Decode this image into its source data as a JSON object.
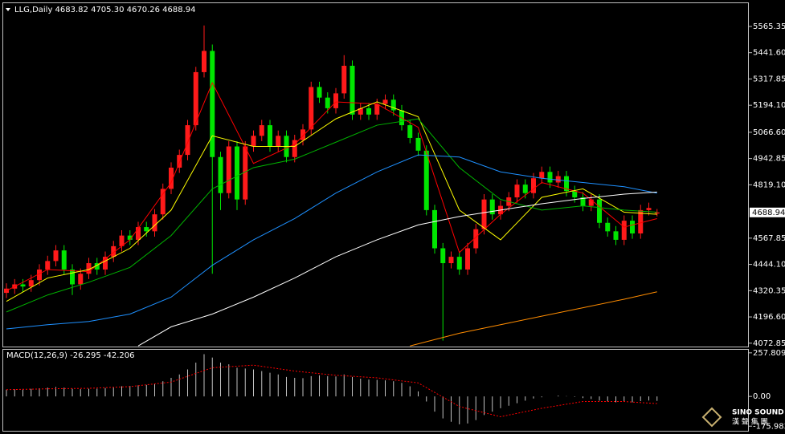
{
  "chart_data": [
    {
      "type": "candlestick",
      "title": "LLG,Daily  4683.82 4705.30 4670.26 4688.94",
      "up_color": "#ff1a1a",
      "down_color": "#00e600",
      "open": [
        4310,
        4330,
        4350,
        4340,
        4370,
        4420,
        4460,
        4510,
        4420,
        4350,
        4400,
        4450,
        4420,
        4480,
        4530,
        4580,
        4560,
        4620,
        4600,
        4680,
        4800,
        4900,
        4960,
        5100,
        5350,
        5450,
        4950,
        4780,
        5000,
        4750,
        5000,
        5050,
        5100,
        5000,
        5050,
        4950,
        5030,
        5080,
        5280,
        5230,
        5180,
        5250,
        5380,
        5150,
        5180,
        5150,
        5200,
        5220,
        5170,
        5100,
        5040,
        4980,
        4700,
        4520,
        4450,
        4480,
        4420,
        4520,
        4610,
        4750,
        4680,
        4720,
        4760,
        4820,
        4780,
        4850,
        4880,
        4830,
        4860,
        4790,
        4760,
        4720,
        4750,
        4640,
        4600,
        4560,
        4650,
        4590,
        4700,
        4683.82
      ],
      "high": [
        4355,
        4375,
        4375,
        4395,
        4445,
        4485,
        4535,
        4535,
        4445,
        4425,
        4475,
        4475,
        4505,
        4555,
        4605,
        4605,
        4645,
        4645,
        4705,
        4825,
        4925,
        4985,
        5125,
        5375,
        5570,
        5480,
        4975,
        5025,
        5025,
        5025,
        5075,
        5125,
        5125,
        5075,
        5075,
        5055,
        5105,
        5305,
        5305,
        5255,
        5275,
        5430,
        5405,
        5205,
        5205,
        5225,
        5245,
        5245,
        5195,
        5125,
        5065,
        5005,
        4725,
        4545,
        4505,
        4505,
        4545,
        4635,
        4775,
        4775,
        4745,
        4785,
        4845,
        4845,
        4875,
        4905,
        4905,
        4885,
        4885,
        4815,
        4785,
        4775,
        4775,
        4665,
        4625,
        4675,
        4675,
        4725,
        4735,
        4705.3
      ],
      "low": [
        4285,
        4305,
        4315,
        4315,
        4345,
        4395,
        4435,
        4395,
        4300,
        4325,
        4375,
        4395,
        4395,
        4455,
        4505,
        4535,
        4535,
        4575,
        4575,
        4655,
        4775,
        4875,
        4935,
        5075,
        5325,
        4400,
        4700,
        4755,
        4700,
        4725,
        4975,
        5025,
        4975,
        4975,
        4925,
        4925,
        5005,
        5055,
        5205,
        5155,
        5155,
        5225,
        5125,
        5125,
        5125,
        5125,
        5175,
        5145,
        5075,
        5015,
        4955,
        4675,
        4495,
        4085,
        4425,
        4395,
        4395,
        4495,
        4585,
        4655,
        4655,
        4695,
        4735,
        4755,
        4755,
        4825,
        4805,
        4805,
        4765,
        4735,
        4695,
        4695,
        4615,
        4575,
        4535,
        4535,
        4565,
        4565,
        4675,
        4670.26
      ],
      "close": [
        4330,
        4350,
        4340,
        4370,
        4420,
        4460,
        4510,
        4420,
        4350,
        4400,
        4450,
        4420,
        4480,
        4530,
        4580,
        4560,
        4620,
        4600,
        4680,
        4800,
        4900,
        4960,
        5100,
        5350,
        5450,
        4950,
        4780,
        5000,
        4750,
        5000,
        5050,
        5100,
        5000,
        5050,
        4950,
        5030,
        5080,
        5280,
        5230,
        5180,
        5250,
        5380,
        5150,
        5180,
        5150,
        5200,
        5220,
        5170,
        5100,
        5040,
        4980,
        4700,
        4520,
        4450,
        4480,
        4420,
        4520,
        4610,
        4750,
        4680,
        4720,
        4760,
        4820,
        4780,
        4850,
        4880,
        4830,
        4860,
        4790,
        4760,
        4720,
        4750,
        4640,
        4600,
        4560,
        4650,
        4590,
        4700,
        4710,
        4688.94
      ],
      "series": [
        {
          "color": "#ff0000",
          "x": [
            0,
            5,
            10,
            15,
            20,
            25,
            30,
            35,
            40,
            45,
            50,
            55,
            60,
            65,
            70,
            75,
            79
          ],
          "values": [
            4320,
            4420,
            4410,
            4560,
            4830,
            5300,
            4920,
            5010,
            5210,
            5200,
            5090,
            4500,
            4680,
            4830,
            4780,
            4620,
            4660
          ]
        },
        {
          "color": "#ffff00",
          "x": [
            0,
            5,
            10,
            15,
            20,
            25,
            30,
            35,
            40,
            45,
            50,
            55,
            60,
            65,
            70,
            75,
            79
          ],
          "values": [
            4270,
            4380,
            4420,
            4520,
            4700,
            5050,
            5000,
            5000,
            5130,
            5210,
            5140,
            4700,
            4560,
            4760,
            4800,
            4690,
            4680
          ]
        },
        {
          "color": "#00b400",
          "x": [
            0,
            5,
            10,
            15,
            20,
            25,
            30,
            35,
            40,
            45,
            50,
            55,
            60,
            65,
            70,
            75,
            79
          ],
          "values": [
            4220,
            4300,
            4360,
            4430,
            4580,
            4800,
            4900,
            4940,
            5020,
            5100,
            5130,
            4900,
            4750,
            4700,
            4720,
            4700,
            4690
          ]
        },
        {
          "color": "#1e90ff",
          "x": [
            0,
            5,
            10,
            15,
            20,
            25,
            30,
            35,
            40,
            45,
            50,
            55,
            60,
            65,
            70,
            75,
            79
          ],
          "values": [
            4140,
            4160,
            4175,
            4210,
            4290,
            4440,
            4560,
            4660,
            4780,
            4880,
            4960,
            4950,
            4880,
            4850,
            4830,
            4810,
            4780
          ]
        },
        {
          "color": "#ffffff",
          "x": [
            16,
            20,
            25,
            30,
            35,
            40,
            45,
            50,
            55,
            60,
            65,
            70,
            75,
            79
          ],
          "values": [
            4060,
            4150,
            4210,
            4290,
            4380,
            4480,
            4560,
            4630,
            4670,
            4700,
            4730,
            4755,
            4775,
            4785
          ]
        },
        {
          "color": "#ff8c00",
          "x": [
            49,
            55,
            60,
            65,
            70,
            75,
            79
          ],
          "values": [
            4060,
            4120,
            4160,
            4200,
            4240,
            4280,
            4315
          ]
        }
      ],
      "ylim": [
        4057,
        5671
      ],
      "yticks": [
        5565.35,
        {
          "value": 5441.6,
          "label": "5441.60"
        },
        5317.85,
        {
          "value": 5194.1,
          "label": "5194.10"
        },
        {
          "value": 5066.6,
          "label": "5066.60"
        },
        4942.85,
        {
          "value": 4819.1,
          "label": "4819.10"
        },
        4567.85,
        {
          "value": 4444.1,
          "label": "4444.10"
        },
        4320.35,
        {
          "value": 4196.6,
          "label": "4196.60"
        },
        4072.85
      ]
    },
    {
      "type": "macd",
      "title": "MACD(12,26,9) -26.295 -42.206",
      "color": "#c0c0c0",
      "values": [
        40,
        42,
        44,
        45,
        48,
        52,
        56,
        52,
        45,
        43,
        45,
        46,
        50,
        55,
        60,
        62,
        66,
        68,
        75,
        90,
        110,
        130,
        160,
        200,
        250,
        230,
        200,
        190,
        170,
        165,
        160,
        150,
        140,
        130,
        115,
        110,
        108,
        120,
        125,
        120,
        118,
        130,
        115,
        105,
        100,
        98,
        95,
        90,
        80,
        60,
        30,
        -30,
        -90,
        -130,
        -150,
        -165,
        -160,
        -140,
        -110,
        -90,
        -70,
        -55,
        -40,
        -25,
        -12,
        -5,
        0,
        5,
        2,
        -3,
        -10,
        -15,
        -25,
        -30,
        -35,
        -30,
        -35,
        -28,
        -24,
        -26.295
      ],
      "signal": {
        "color": "#ff0000",
        "x": [
          0,
          5,
          10,
          15,
          20,
          25,
          30,
          35,
          40,
          45,
          50,
          55,
          60,
          65,
          70,
          75,
          79
        ],
        "values": [
          40,
          45,
          48,
          58,
          85,
          170,
          185,
          150,
          125,
          110,
          80,
          -60,
          -120,
          -70,
          -30,
          -30,
          -42.206
        ]
      },
      "ylim": [
        -208,
        276
      ],
      "yticks": [
        257.809,
        {
          "value": 0,
          "label": "0.00"
        },
        -175.983
      ]
    }
  ],
  "watermark": {
    "title": "SINO SOUND",
    "subtitle": "漢 聲 集 團"
  }
}
